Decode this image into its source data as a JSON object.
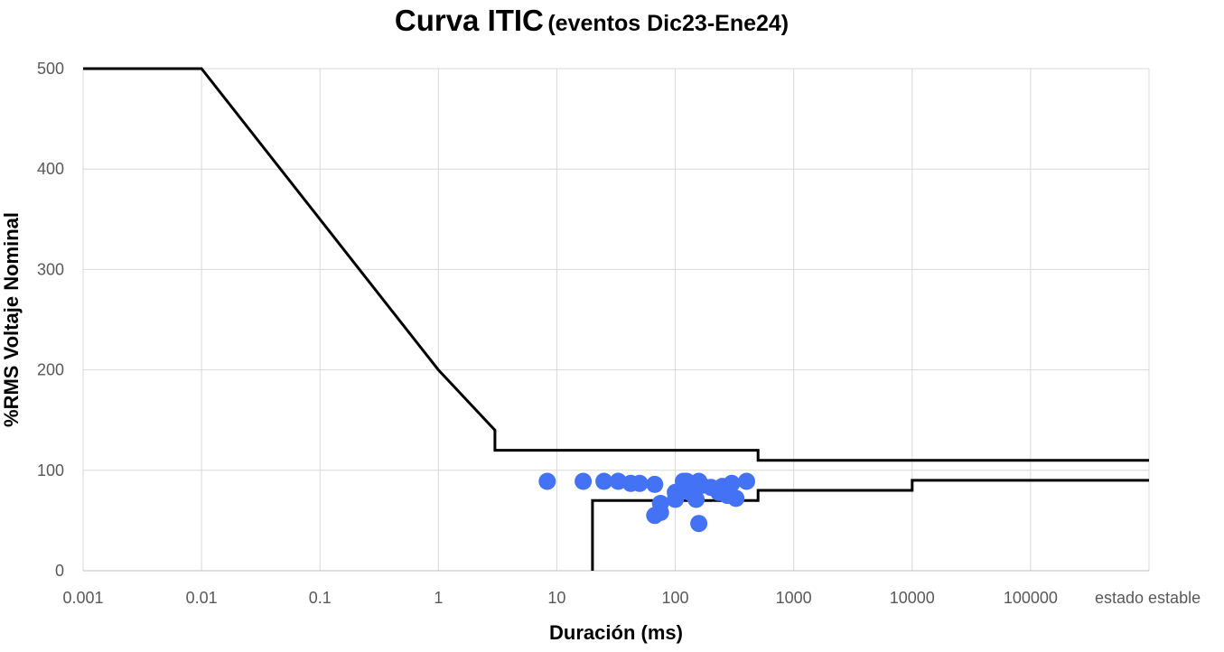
{
  "chart_data": {
    "type": "scatter",
    "title": "Curva ITIC",
    "subtitle": "(eventos Dic23-Ene24)",
    "xlabel": "Duración (ms)",
    "ylabel": "%RMS Voltaje Nominal",
    "x_scale": "log",
    "xlim": [
      0.001,
      1000000
    ],
    "ylim": [
      0,
      500
    ],
    "x_ticks": [
      {
        "value": 0.001,
        "label": "0.001"
      },
      {
        "value": 0.01,
        "label": "0.01"
      },
      {
        "value": 0.1,
        "label": "0.1"
      },
      {
        "value": 1,
        "label": "1"
      },
      {
        "value": 10,
        "label": "10"
      },
      {
        "value": 100,
        "label": "100"
      },
      {
        "value": 1000,
        "label": "1000"
      },
      {
        "value": 10000,
        "label": "10000"
      },
      {
        "value": 100000,
        "label": "100000"
      }
    ],
    "x_end_label": "estado estable",
    "y_ticks": [
      0,
      100,
      200,
      300,
      400,
      500
    ],
    "grid": true,
    "colors": {
      "points": "#4472F4",
      "curves": "#000000",
      "grid": "#D9D9D9"
    },
    "curves": [
      {
        "points": [
          [
            0.001,
            500
          ],
          [
            0.01,
            500
          ],
          [
            1,
            200
          ],
          [
            3,
            140
          ],
          [
            3,
            120
          ],
          [
            500,
            120
          ],
          [
            500,
            110
          ],
          [
            1000000,
            110
          ]
        ]
      },
      {
        "points": [
          [
            20,
            0
          ],
          [
            20,
            70
          ],
          [
            500,
            70
          ],
          [
            500,
            80
          ],
          [
            10000,
            80
          ],
          [
            10000,
            90
          ],
          [
            1000000,
            90
          ]
        ]
      }
    ],
    "points": [
      [
        8.3,
        89
      ],
      [
        16.7,
        89
      ],
      [
        25,
        89
      ],
      [
        33,
        89
      ],
      [
        42,
        87
      ],
      [
        50,
        87
      ],
      [
        67,
        86
      ],
      [
        67,
        55
      ],
      [
        75,
        67
      ],
      [
        75,
        58
      ],
      [
        100,
        78
      ],
      [
        100,
        71
      ],
      [
        117,
        89
      ],
      [
        125,
        89
      ],
      [
        125,
        83
      ],
      [
        133,
        78
      ],
      [
        150,
        71
      ],
      [
        158,
        89
      ],
      [
        158,
        47
      ],
      [
        167,
        85
      ],
      [
        200,
        83
      ],
      [
        233,
        78
      ],
      [
        250,
        84
      ],
      [
        275,
        75
      ],
      [
        300,
        87
      ],
      [
        325,
        72
      ],
      [
        400,
        89
      ]
    ]
  }
}
